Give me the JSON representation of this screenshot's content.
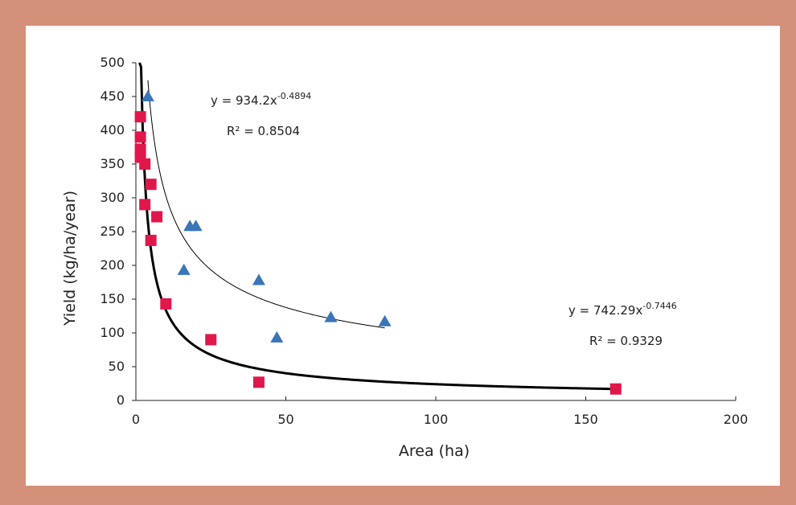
{
  "chart_data": {
    "type": "scatter",
    "xlabel": "Area (ha)",
    "ylabel": "Yield (kg/ha/year)",
    "xlim": [
      0,
      200
    ],
    "ylim": [
      0,
      500
    ],
    "xticks": [
      "0",
      "50",
      "100",
      "150",
      "200"
    ],
    "yticks": [
      "0",
      "50",
      "100",
      "150",
      "200",
      "250",
      "300",
      "350",
      "400",
      "450",
      "500"
    ],
    "grid": false,
    "legend": "none",
    "series": [
      {
        "marker": "triangle",
        "color": "#3a75b8",
        "points": [
          {
            "x": 4,
            "y": 450
          },
          {
            "x": 18,
            "y": 258
          },
          {
            "x": 20,
            "y": 258
          },
          {
            "x": 16,
            "y": 193
          },
          {
            "x": 41,
            "y": 178
          },
          {
            "x": 47,
            "y": 93
          },
          {
            "x": 65,
            "y": 123
          },
          {
            "x": 83,
            "y": 117
          }
        ],
        "trendline": {
          "a": 934.2,
          "b": -0.4894,
          "xrange": [
            4,
            83
          ]
        },
        "equation_text": "y = 934.2x",
        "equation_exp": "-0.4894",
        "r2_text": "R² = 0.8504"
      },
      {
        "marker": "square",
        "color": "#e0174a",
        "points": [
          {
            "x": 1.5,
            "y": 420
          },
          {
            "x": 1.5,
            "y": 390
          },
          {
            "x": 1.5,
            "y": 372
          },
          {
            "x": 1.5,
            "y": 360
          },
          {
            "x": 3,
            "y": 350
          },
          {
            "x": 5,
            "y": 320
          },
          {
            "x": 3,
            "y": 290
          },
          {
            "x": 7,
            "y": 272
          },
          {
            "x": 5,
            "y": 237
          },
          {
            "x": 10,
            "y": 143
          },
          {
            "x": 25,
            "y": 90
          },
          {
            "x": 41,
            "y": 27
          },
          {
            "x": 160,
            "y": 17
          }
        ],
        "trendline": {
          "a": 742.29,
          "b": -0.7446,
          "xrange": [
            1.2,
            160
          ]
        },
        "equation_text": "y = 742.29x",
        "equation_exp": "-0.7446",
        "r2_text": "R² = 0.9329"
      }
    ]
  }
}
